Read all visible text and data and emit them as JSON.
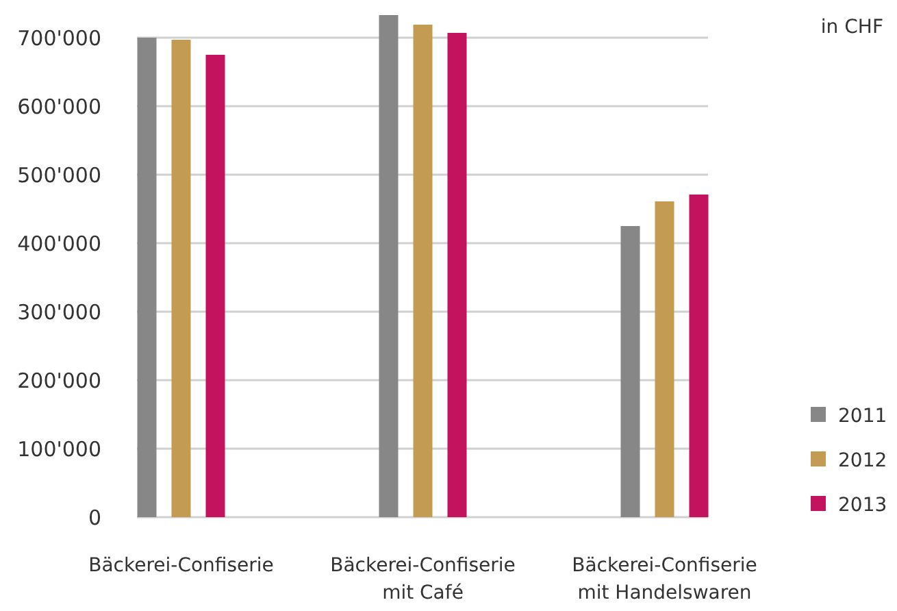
{
  "chart_data": {
    "type": "bar",
    "categories": [
      "Bäckerei-Confiserie",
      "Bäckerei-Confiserie mit Café",
      "Bäckerei-Confiserie mit Handelswaren"
    ],
    "series": [
      {
        "name": "2011",
        "color": "#878787",
        "values": [
          700000,
          733000,
          425000
        ]
      },
      {
        "name": "2012",
        "color": "#c49b52",
        "values": [
          697000,
          719000,
          461000
        ]
      },
      {
        "name": "2013",
        "color": "#c4135e",
        "values": [
          675000,
          707000,
          471000
        ]
      }
    ],
    "ylim": [
      0,
      733000
    ],
    "yticks": [
      {
        "value": 0,
        "label": "0"
      },
      {
        "value": 100000,
        "label": "100'000"
      },
      {
        "value": 200000,
        "label": "200'000"
      },
      {
        "value": 300000,
        "label": "300'000"
      },
      {
        "value": 400000,
        "label": "400'000"
      },
      {
        "value": 500000,
        "label": "500'000"
      },
      {
        "value": 600000,
        "label": "600'000"
      },
      {
        "value": 700000,
        "label": "700'000"
      }
    ],
    "grid": "y",
    "legend": "bottom right",
    "annotations": [
      "in CHF"
    ]
  }
}
